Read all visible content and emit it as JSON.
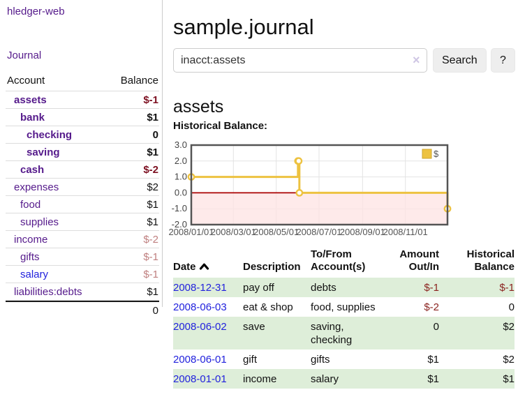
{
  "palette": {
    "link_purple": "#551a8b",
    "link_blue": "#2222dd",
    "negative_strong": "#7d1021",
    "negative_faded": "#bf7f7f",
    "table_negative": "#8b2420",
    "stripe_green": "#deeed9",
    "chart_line_yellow": "#edc240",
    "chart_zero_line": "#aa0000",
    "chart_negative_fill": "#fde3e3",
    "chart_border": "#545454"
  },
  "sidebar": {
    "brand": "hledger-web",
    "journal_link": "Journal",
    "accounts": {
      "headers": {
        "account": "Account",
        "balance": "Balance"
      },
      "rows": [
        {
          "name": "assets",
          "balance": "$-1",
          "level": 0,
          "bold": true,
          "balance_color": "neg-strong"
        },
        {
          "name": "bank",
          "balance": "$1",
          "level": 1,
          "bold": true
        },
        {
          "name": "checking",
          "balance": "0",
          "level": 2,
          "bold": true
        },
        {
          "name": "saving",
          "balance": "$1",
          "level": 2,
          "bold": true
        },
        {
          "name": "cash",
          "balance": "$-2",
          "level": 1,
          "bold": true,
          "balance_color": "neg-strong"
        },
        {
          "name": "expenses",
          "balance": "$2",
          "level": 0
        },
        {
          "name": "food",
          "balance": "$1",
          "level": 1
        },
        {
          "name": "supplies",
          "balance": "$1",
          "level": 1
        },
        {
          "name": "income",
          "balance": "$-2",
          "level": 0,
          "balance_color": "neg-faded"
        },
        {
          "name": "gifts",
          "balance": "$-1",
          "level": 1,
          "balance_color": "neg-faded"
        },
        {
          "name": "salary",
          "balance": "$-1",
          "level": 1,
          "balance_color": "neg-faded",
          "name_color": "blue"
        },
        {
          "name": "liabilities:debts",
          "balance": "$1",
          "level": 0
        }
      ],
      "total": "0"
    }
  },
  "main": {
    "title": "sample.journal",
    "search": {
      "value": "inacct:assets",
      "clear_icon": "×",
      "button_label": "Search",
      "help_label": "?"
    },
    "account_heading": "assets"
  },
  "chart_data": {
    "type": "line",
    "title": "Historical Balance:",
    "step": true,
    "legend": {
      "label": "$",
      "position": "top-right"
    },
    "ylim": [
      -2,
      3
    ],
    "y_ticks": [
      {
        "v": 3,
        "label": "3.0"
      },
      {
        "v": 2,
        "label": "2.0"
      },
      {
        "v": 1,
        "label": "1.0"
      },
      {
        "v": 0,
        "label": "0.0"
      },
      {
        "v": -1,
        "label": "-1.0"
      },
      {
        "v": -2,
        "label": "-2.0"
      }
    ],
    "x_range_days": [
      0,
      365
    ],
    "x_ticks": [
      {
        "day": 0,
        "label": "2008/01/01"
      },
      {
        "day": 60,
        "label": "2008/03/01"
      },
      {
        "day": 121,
        "label": "2008/05/01"
      },
      {
        "day": 182,
        "label": "2008/07/01"
      },
      {
        "day": 244,
        "label": "2008/09/01"
      },
      {
        "day": 305,
        "label": "2008/11/01"
      }
    ],
    "series": [
      {
        "name": "$",
        "color": "#edc240",
        "points": [
          {
            "date": "2008-01-01",
            "day": 0,
            "value": 1
          },
          {
            "date": "2008-06-01",
            "day": 152,
            "value": 2
          },
          {
            "date": "2008-06-02",
            "day": 153,
            "value": 2
          },
          {
            "date": "2008-06-03",
            "day": 154,
            "value": 0
          },
          {
            "date": "2008-12-31",
            "day": 365,
            "value": -1
          }
        ]
      }
    ]
  },
  "register": {
    "headers": {
      "date": "Date",
      "description": "Description",
      "accounts": "To/From Account(s)",
      "amount": "Amount Out/In",
      "balance": "Historical Balance"
    },
    "rows": [
      {
        "date": "2008-12-31",
        "description": "pay off",
        "accounts": "debts",
        "amount": "$-1",
        "balance": "$-1"
      },
      {
        "date": "2008-06-03",
        "description": "eat & shop",
        "accounts": "food, supplies",
        "amount": "$-2",
        "balance": "0"
      },
      {
        "date": "2008-06-02",
        "description": "save",
        "accounts": "saving, checking",
        "amount": "0",
        "balance": "$2"
      },
      {
        "date": "2008-06-01",
        "description": "gift",
        "accounts": "gifts",
        "amount": "$1",
        "balance": "$2"
      },
      {
        "date": "2008-01-01",
        "description": "income",
        "accounts": "salary",
        "amount": "$1",
        "balance": "$1"
      }
    ]
  }
}
